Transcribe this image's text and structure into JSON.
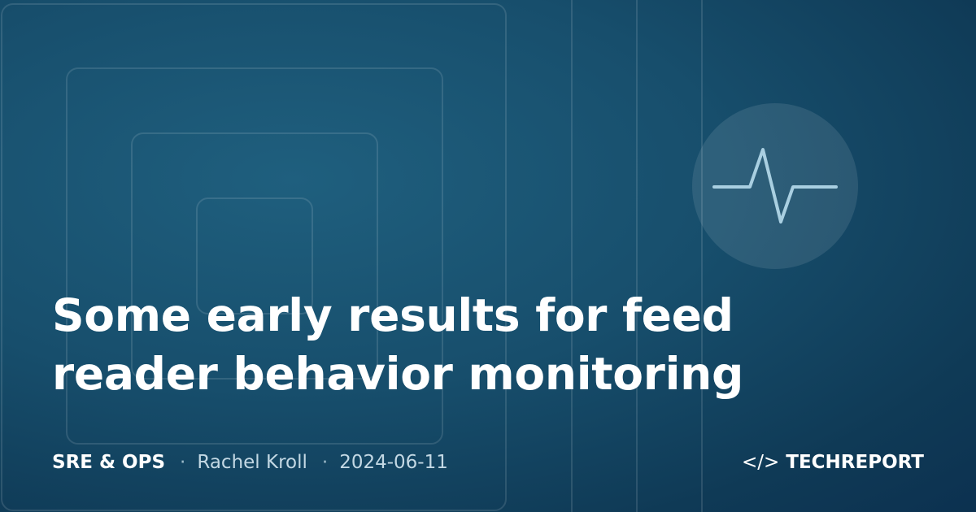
{
  "title": "Some early results for feed reader behavior monitoring",
  "meta": {
    "category": "SRE & OPS",
    "separator": "·",
    "author": "Rachel Kroll",
    "date": "2024-06-11"
  },
  "brand": {
    "icon": "</>",
    "name": "TECHREPORT"
  }
}
